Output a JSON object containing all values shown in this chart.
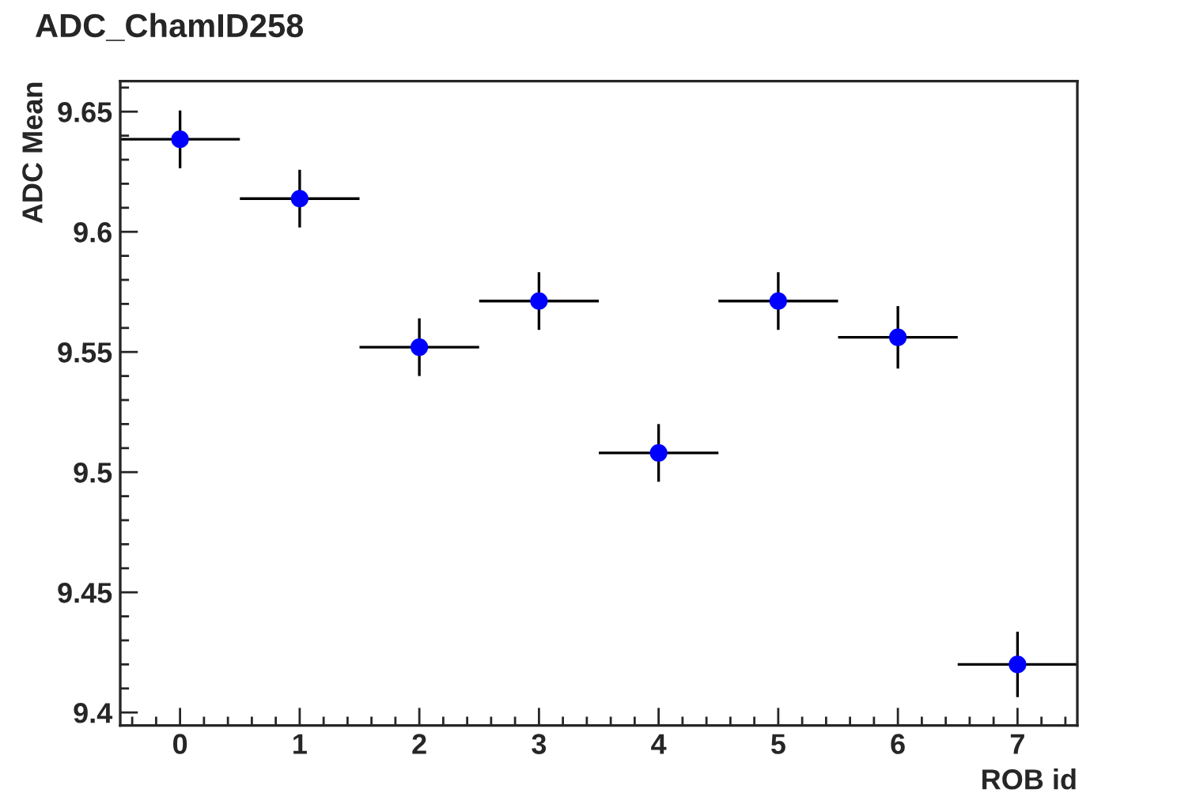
{
  "chart_data": {
    "type": "scatter",
    "title": "ADC_ChamID258",
    "xlabel": "ROB id",
    "ylabel": "ADC Mean",
    "x": [
      0,
      1,
      2,
      3,
      4,
      5,
      6,
      7
    ],
    "series": [
      {
        "color": "#0000ff",
        "values": [
          9.6385,
          9.6138,
          9.552,
          9.5712,
          9.508,
          9.5712,
          9.5561,
          9.42
        ],
        "errors": [
          0.012,
          0.012,
          0.012,
          0.012,
          0.012,
          0.012,
          0.013,
          0.0136
        ],
        "xerrors": [
          0.5,
          0.5,
          0.5,
          0.5,
          0.5,
          0.5,
          0.5,
          0.5
        ]
      }
    ],
    "xlim": [
      -0.5,
      7.5
    ],
    "ylim": [
      9.3946,
      9.6627
    ],
    "xticks": [
      0,
      1,
      2,
      3,
      4,
      5,
      6,
      7
    ],
    "yticks": [
      9.4,
      9.45,
      9.5,
      9.55,
      9.6,
      9.65
    ],
    "marker": "circle",
    "grid": false,
    "legend": false
  }
}
